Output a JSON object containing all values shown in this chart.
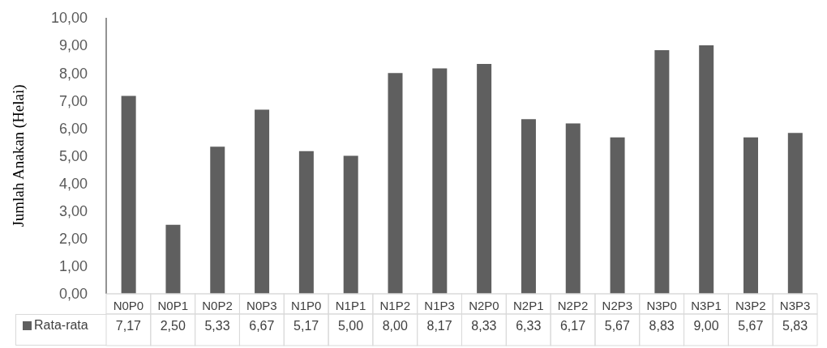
{
  "chart_data": {
    "type": "bar",
    "ylabel": "Jumlah Anakan (Helai)",
    "categories": [
      "N0P0",
      "N0P1",
      "N0P2",
      "N0P3",
      "N1P0",
      "N1P1",
      "N1P2",
      "N1P3",
      "N2P0",
      "N2P1",
      "N2P2",
      "N2P3",
      "N3P0",
      "N3P1",
      "N3P2",
      "N3P3"
    ],
    "series": [
      {
        "name": "Rata-rata",
        "color": "#5f5f5f",
        "values": [
          7.17,
          2.5,
          5.33,
          6.67,
          5.17,
          5.0,
          8.0,
          8.17,
          8.33,
          6.33,
          6.17,
          5.67,
          8.83,
          9.0,
          5.67,
          5.83
        ],
        "value_labels": [
          "7,17",
          "2,50",
          "5,33",
          "6,67",
          "5,17",
          "5,00",
          "8,00",
          "8,17",
          "8,33",
          "6,33",
          "6,17",
          "5,67",
          "8,83",
          "9,00",
          "5,67",
          "5,83"
        ]
      }
    ],
    "ylim": [
      0,
      10
    ],
    "yticks": [
      {
        "value": 0,
        "label": "0,00"
      },
      {
        "value": 1,
        "label": "1,00"
      },
      {
        "value": 2,
        "label": "2,00"
      },
      {
        "value": 3,
        "label": "3,00"
      },
      {
        "value": 4,
        "label": "4,00"
      },
      {
        "value": 5,
        "label": "5,00"
      },
      {
        "value": 6,
        "label": "6,00"
      },
      {
        "value": 7,
        "label": "7,00"
      },
      {
        "value": 8,
        "label": "8,00"
      },
      {
        "value": 9,
        "label": "9,00"
      },
      {
        "value": 10,
        "label": "10,00"
      }
    ],
    "legend": "bottom"
  }
}
